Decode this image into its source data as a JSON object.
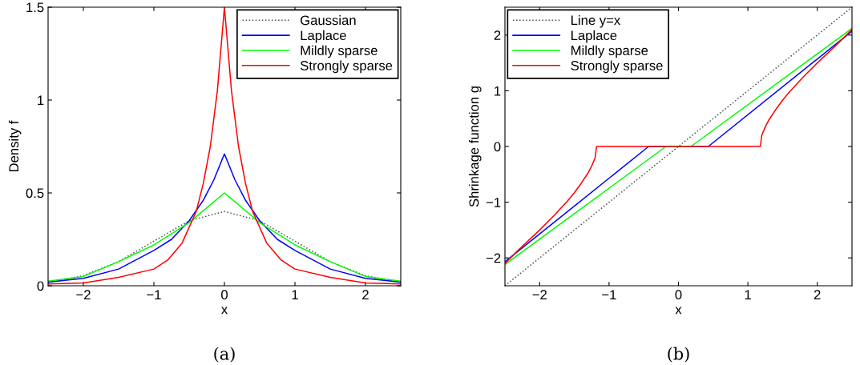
{
  "chart_data": [
    {
      "type": "line",
      "xlabel": "x",
      "ylabel": "Density f",
      "xlim": [
        -2.5,
        2.5
      ],
      "ylim": [
        0,
        1.5
      ],
      "xticks": [
        -2,
        -1,
        0,
        1,
        2
      ],
      "yticks": [
        0,
        0.5,
        1,
        1.5
      ],
      "grid": false,
      "legend": "top right",
      "annotations": [
        "(a)"
      ],
      "series": [
        {
          "name": "Gaussian",
          "color": "#505050",
          "line_style": "dotted",
          "x": [
            -2.5,
            -2,
            -1.5,
            -1,
            -0.5,
            0,
            0.5,
            1,
            1.5,
            2,
            2.5
          ],
          "values": [
            0.018,
            0.054,
            0.13,
            0.24,
            0.35,
            0.4,
            0.35,
            0.24,
            0.13,
            0.054,
            0.018
          ]
        },
        {
          "name": "Laplace",
          "color": "#0000ff",
          "line_style": "solid",
          "x": [
            -2.5,
            -2,
            -1.5,
            -1,
            -0.75,
            -0.5,
            -0.3,
            -0.15,
            0,
            0.15,
            0.3,
            0.5,
            0.75,
            1,
            1.5,
            2,
            2.5
          ],
          "values": [
            0.02,
            0.04,
            0.09,
            0.19,
            0.25,
            0.35,
            0.46,
            0.57,
            0.71,
            0.57,
            0.46,
            0.35,
            0.25,
            0.19,
            0.09,
            0.04,
            0.02
          ]
        },
        {
          "name": "Mildly sparse",
          "color": "#00ff00",
          "line_style": "solid",
          "x": [
            -2.5,
            -2,
            -1.5,
            -1,
            -0.5,
            0,
            0.5,
            1,
            1.5,
            2,
            2.5
          ],
          "values": [
            0.025,
            0.05,
            0.13,
            0.22,
            0.34,
            0.5,
            0.34,
            0.22,
            0.13,
            0.05,
            0.025
          ]
        },
        {
          "name": "Strongly sparse",
          "color": "#ff0000",
          "line_style": "solid",
          "x": [
            -2.5,
            -2,
            -1.5,
            -1,
            -0.8,
            -0.6,
            -0.4,
            -0.3,
            -0.2,
            -0.1,
            0,
            0.1,
            0.2,
            0.3,
            0.4,
            0.6,
            0.8,
            1,
            1.5,
            2,
            2.5
          ],
          "values": [
            0.01,
            0.015,
            0.045,
            0.09,
            0.14,
            0.23,
            0.4,
            0.55,
            0.75,
            1.05,
            1.5,
            1.05,
            0.75,
            0.55,
            0.4,
            0.23,
            0.14,
            0.09,
            0.045,
            0.015,
            0.01
          ]
        }
      ]
    },
    {
      "type": "line",
      "xlabel": "x",
      "ylabel": "Shrinkage function g",
      "xlim": [
        -2.5,
        2.5
      ],
      "ylim": [
        -2.5,
        2.5
      ],
      "xticks": [
        -2,
        -1,
        0,
        1,
        2
      ],
      "yticks": [
        -2,
        -1,
        0,
        1,
        2
      ],
      "grid": false,
      "legend": "top left",
      "annotations": [
        "(b)"
      ],
      "series": [
        {
          "name": "Line y=x",
          "color": "#505050",
          "line_style": "dotted",
          "x": [
            -2.5,
            2.5
          ],
          "values": [
            -2.5,
            2.5
          ]
        },
        {
          "name": "Laplace",
          "color": "#0000ff",
          "line_style": "solid",
          "x": [
            -2.5,
            -0.43,
            0.43,
            2.5
          ],
          "values": [
            -2.07,
            0,
            0,
            2.07
          ]
        },
        {
          "name": "Mildly sparse",
          "color": "#00ff00",
          "line_style": "solid",
          "x": [
            -2.5,
            -0.18,
            0.18,
            2.5
          ],
          "values": [
            -2.12,
            0,
            0,
            2.12
          ]
        },
        {
          "name": "Strongly sparse",
          "color": "#ff0000",
          "line_style": "solid",
          "x": [
            -2.5,
            -2.3,
            -2,
            -1.8,
            -1.6,
            -1.5,
            -1.4,
            -1.3,
            -1.25,
            -1.2,
            -1.18,
            1.18,
            1.2,
            1.25,
            1.3,
            1.4,
            1.5,
            1.6,
            1.8,
            2,
            2.3,
            2.5
          ],
          "values": [
            -2.1,
            -1.85,
            -1.5,
            -1.25,
            -0.98,
            -0.83,
            -0.66,
            -0.47,
            -0.35,
            -0.2,
            0,
            0,
            0.2,
            0.35,
            0.47,
            0.66,
            0.83,
            0.98,
            1.25,
            1.5,
            1.85,
            2.1
          ]
        }
      ]
    }
  ]
}
